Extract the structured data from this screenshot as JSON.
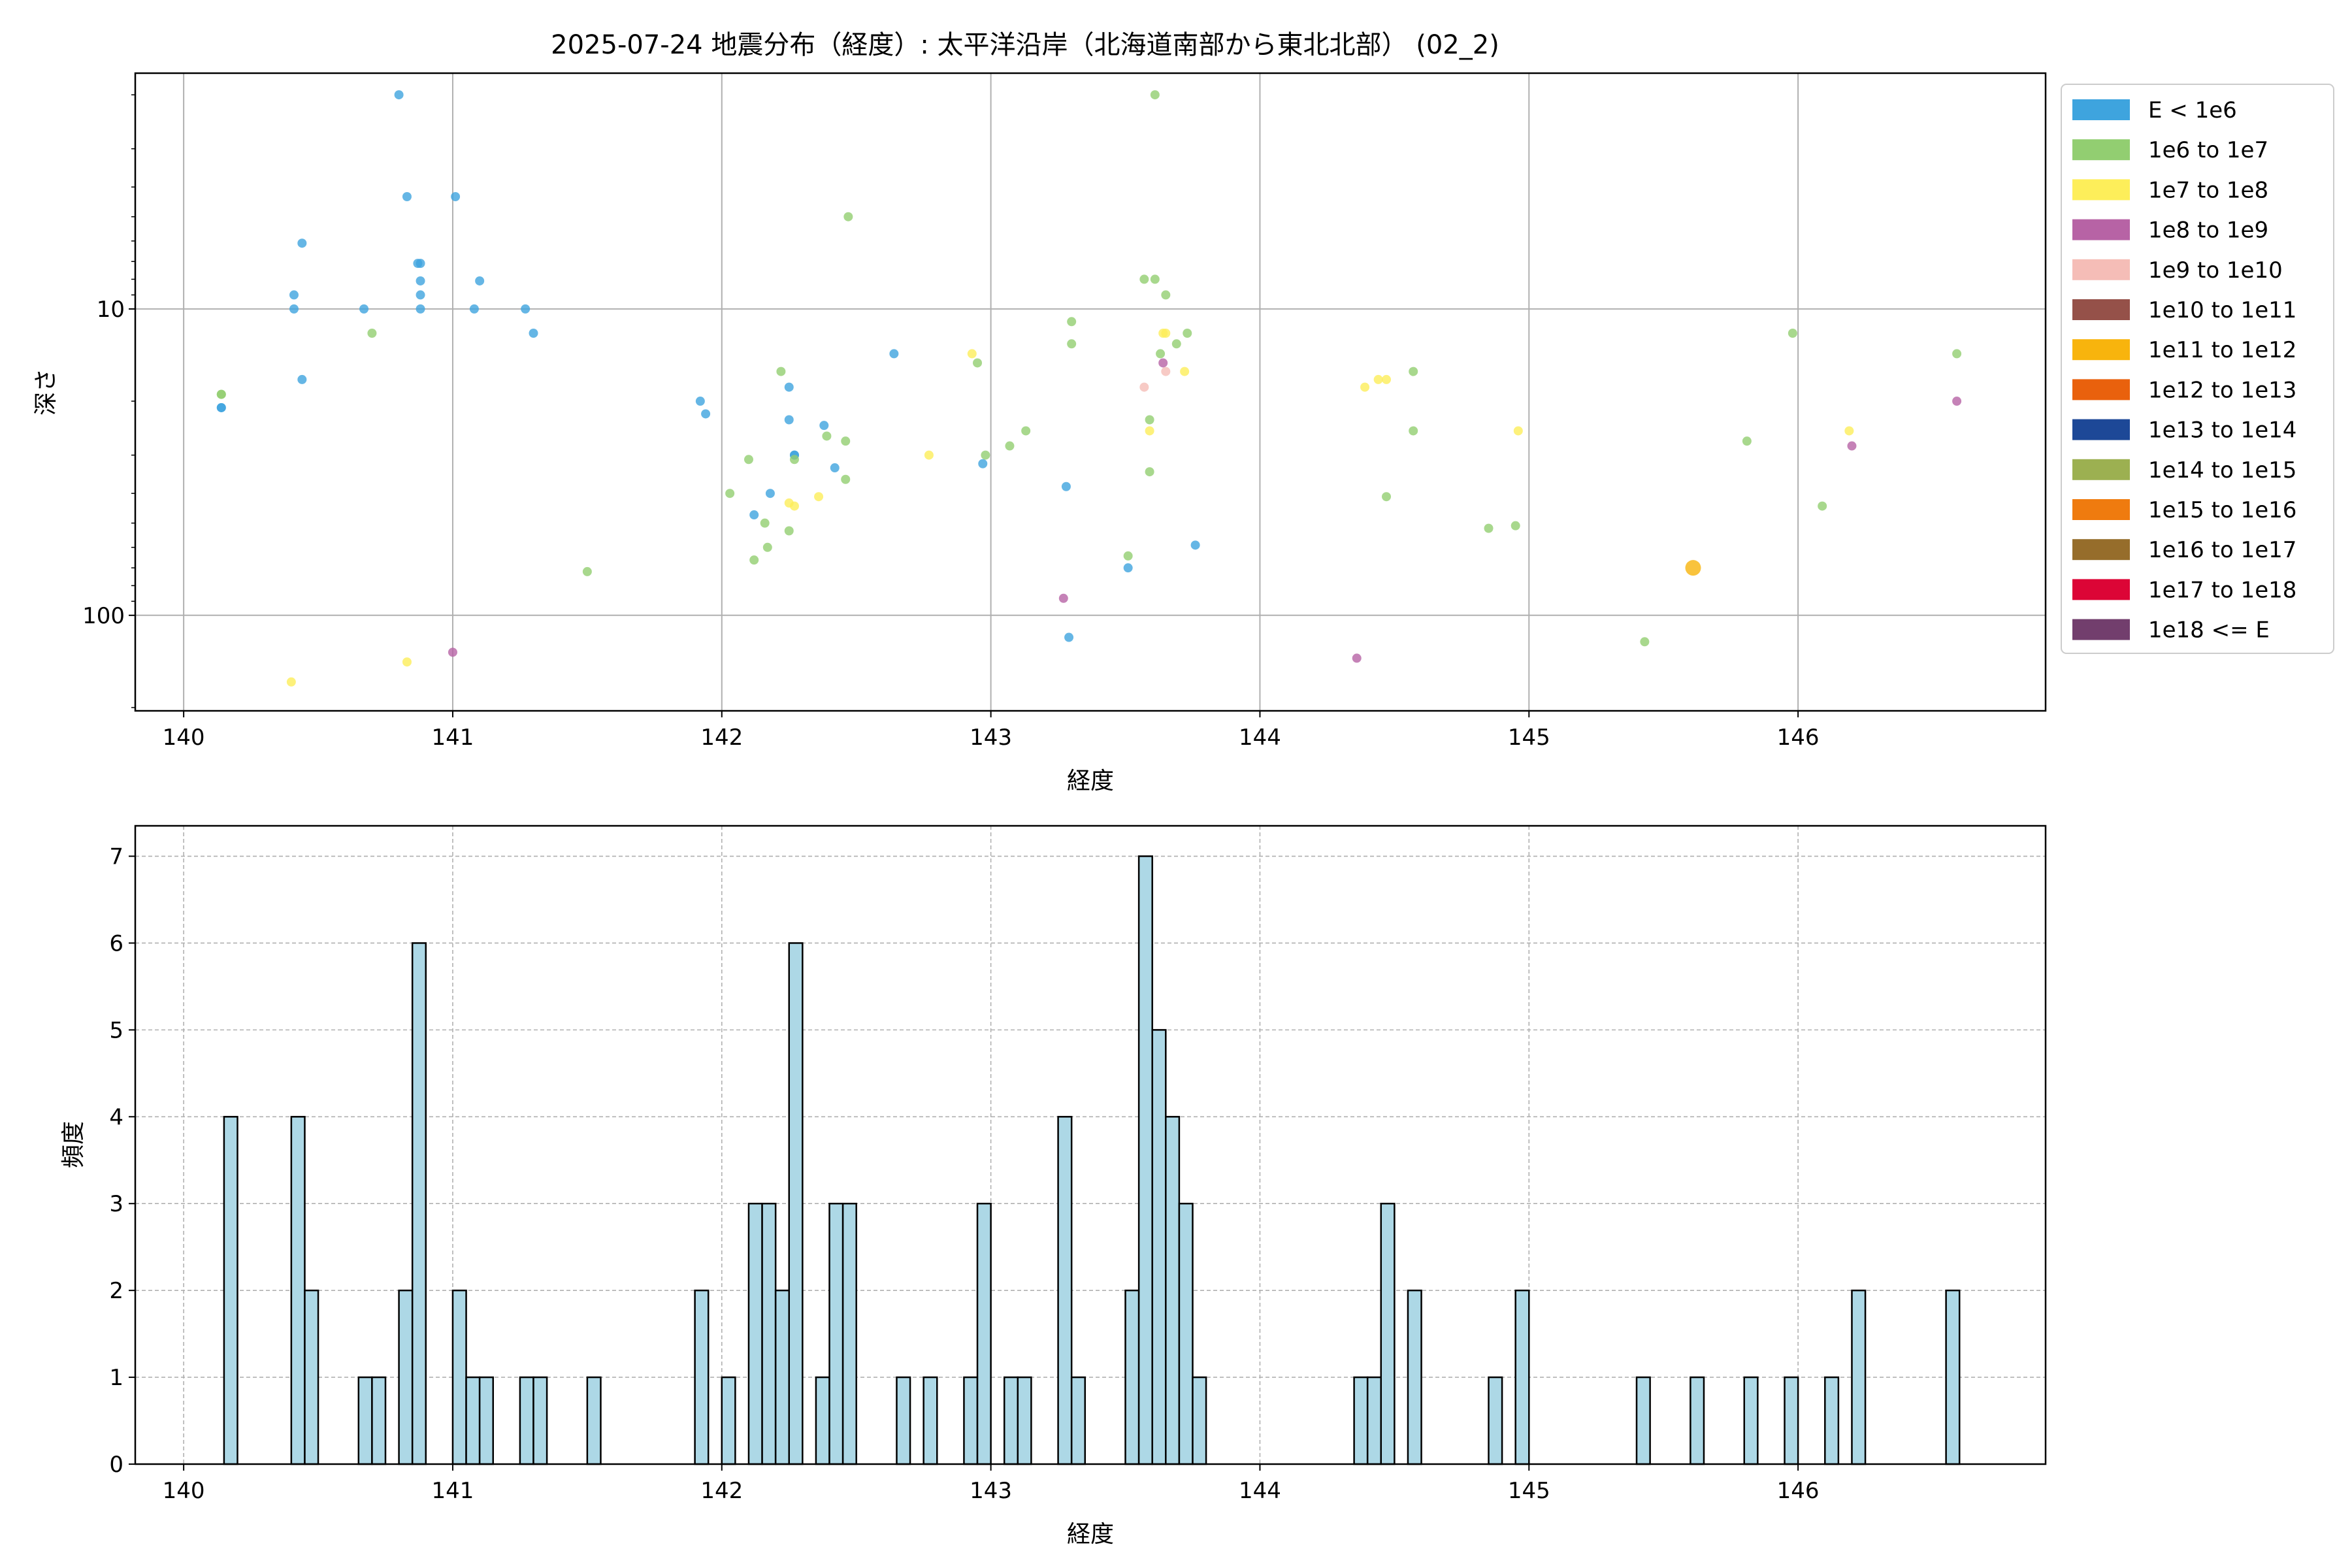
{
  "title": "2025-07-24 地震分布（経度）: 太平洋沿岸（北海道南部から東北北部） (02_2)",
  "chart_data": [
    {
      "type": "scatter",
      "xlabel": "経度",
      "ylabel": "深さ",
      "xlim": [
        139.82,
        146.92
      ],
      "ylim": [
        205,
        1.7
      ],
      "yscale": "log",
      "yaxis_inverted": true,
      "grid": true,
      "xticks": [
        "140",
        "141",
        "142",
        "143",
        "144",
        "145",
        "146"
      ],
      "yticks": [
        "10",
        "100"
      ],
      "legend_position": "outside-right",
      "legend": [
        {
          "label": "E < 1e6",
          "color": "#3ea4de"
        },
        {
          "label": "1e6 to 1e7",
          "color": "#92ce71"
        },
        {
          "label": "1e7 to 1e8",
          "color": "#fdee5a"
        },
        {
          "label": "1e8 to 1e9",
          "color": "#b763a5"
        },
        {
          "label": "1e9 to 1e10",
          "color": "#f5bdb7"
        },
        {
          "label": "1e10 to 1e11",
          "color": "#955149"
        },
        {
          "label": "1e11 to 1e12",
          "color": "#f8b40d"
        },
        {
          "label": "1e12 to 1e13",
          "color": "#e9610d"
        },
        {
          "label": "1e13 to 1e14",
          "color": "#1d4897"
        },
        {
          "label": "1e14 to 1e15",
          "color": "#9cb051"
        },
        {
          "label": "1e15 to 1e16",
          "color": "#ef7b0f"
        },
        {
          "label": "1e16 to 1e17",
          "color": "#966d2b"
        },
        {
          "label": "1e17 to 1e18",
          "color": "#dc0536"
        },
        {
          "label": "1e18 <= E",
          "color": "#723e6d"
        }
      ],
      "points": [
        {
          "x": 140.8,
          "y": 2,
          "c": 0
        },
        {
          "x": 140.83,
          "y": 4.3,
          "c": 0
        },
        {
          "x": 141.01,
          "y": 4.3,
          "c": 0
        },
        {
          "x": 140.44,
          "y": 6.1,
          "c": 0
        },
        {
          "x": 140.87,
          "y": 7.1,
          "c": 0
        },
        {
          "x": 140.88,
          "y": 7.1,
          "c": 0
        },
        {
          "x": 141.1,
          "y": 8.1,
          "c": 0
        },
        {
          "x": 140.88,
          "y": 8.1,
          "c": 0
        },
        {
          "x": 140.41,
          "y": 9,
          "c": 0
        },
        {
          "x": 140.88,
          "y": 9,
          "c": 0
        },
        {
          "x": 140.41,
          "y": 10,
          "c": 0
        },
        {
          "x": 140.67,
          "y": 10,
          "c": 0
        },
        {
          "x": 140.88,
          "y": 10,
          "c": 0
        },
        {
          "x": 141.08,
          "y": 10,
          "c": 0
        },
        {
          "x": 141.27,
          "y": 10,
          "c": 0
        },
        {
          "x": 141.3,
          "y": 12,
          "c": 0
        },
        {
          "x": 140.44,
          "y": 17,
          "c": 0
        },
        {
          "x": 140.14,
          "y": 21,
          "c": 0
        },
        {
          "x": 140.14,
          "y": 21,
          "c": 0
        },
        {
          "x": 141.92,
          "y": 20,
          "c": 0
        },
        {
          "x": 141.94,
          "y": 22,
          "c": 0
        },
        {
          "x": 142.25,
          "y": 18,
          "c": 0
        },
        {
          "x": 142.25,
          "y": 23,
          "c": 0
        },
        {
          "x": 142.38,
          "y": 24,
          "c": 0
        },
        {
          "x": 142.27,
          "y": 30,
          "c": 0
        },
        {
          "x": 142.27,
          "y": 30,
          "c": 0
        },
        {
          "x": 142.42,
          "y": 33,
          "c": 0
        },
        {
          "x": 142.18,
          "y": 40,
          "c": 0
        },
        {
          "x": 142.12,
          "y": 47,
          "c": 0
        },
        {
          "x": 142.64,
          "y": 14,
          "c": 0
        },
        {
          "x": 142.97,
          "y": 32,
          "c": 0
        },
        {
          "x": 143.28,
          "y": 38,
          "c": 0
        },
        {
          "x": 143.29,
          "y": 118,
          "c": 0
        },
        {
          "x": 143.51,
          "y": 70,
          "c": 0
        },
        {
          "x": 143.76,
          "y": 59,
          "c": 0
        },
        {
          "x": 140.14,
          "y": 19,
          "c": 1
        },
        {
          "x": 140.14,
          "y": 19,
          "c": 1
        },
        {
          "x": 140.7,
          "y": 12,
          "c": 1
        },
        {
          "x": 141.5,
          "y": 72,
          "c": 1
        },
        {
          "x": 142.03,
          "y": 40,
          "c": 1
        },
        {
          "x": 142.1,
          "y": 31,
          "c": 1
        },
        {
          "x": 142.12,
          "y": 66,
          "c": 1
        },
        {
          "x": 142.16,
          "y": 50,
          "c": 1
        },
        {
          "x": 142.17,
          "y": 60,
          "c": 1
        },
        {
          "x": 142.22,
          "y": 16,
          "c": 1
        },
        {
          "x": 142.25,
          "y": 53,
          "c": 1
        },
        {
          "x": 142.27,
          "y": 31,
          "c": 1
        },
        {
          "x": 142.39,
          "y": 26,
          "c": 1
        },
        {
          "x": 142.46,
          "y": 27,
          "c": 1
        },
        {
          "x": 142.46,
          "y": 36,
          "c": 1
        },
        {
          "x": 142.47,
          "y": 5,
          "c": 1
        },
        {
          "x": 142.95,
          "y": 15,
          "c": 1
        },
        {
          "x": 142.98,
          "y": 30,
          "c": 1
        },
        {
          "x": 143.07,
          "y": 28,
          "c": 1
        },
        {
          "x": 143.13,
          "y": 25,
          "c": 1
        },
        {
          "x": 143.3,
          "y": 11,
          "c": 1
        },
        {
          "x": 143.3,
          "y": 13,
          "c": 1
        },
        {
          "x": 143.51,
          "y": 64,
          "c": 1
        },
        {
          "x": 143.57,
          "y": 8,
          "c": 1
        },
        {
          "x": 143.59,
          "y": 23,
          "c": 1
        },
        {
          "x": 143.59,
          "y": 34,
          "c": 1
        },
        {
          "x": 143.61,
          "y": 2,
          "c": 1
        },
        {
          "x": 143.61,
          "y": 8,
          "c": 1
        },
        {
          "x": 143.63,
          "y": 14,
          "c": 1
        },
        {
          "x": 143.65,
          "y": 9,
          "c": 1
        },
        {
          "x": 143.69,
          "y": 13,
          "c": 1
        },
        {
          "x": 143.73,
          "y": 12,
          "c": 1
        },
        {
          "x": 144.47,
          "y": 41,
          "c": 1
        },
        {
          "x": 144.57,
          "y": 16,
          "c": 1
        },
        {
          "x": 144.57,
          "y": 25,
          "c": 1
        },
        {
          "x": 144.85,
          "y": 52,
          "c": 1
        },
        {
          "x": 144.95,
          "y": 51,
          "c": 1
        },
        {
          "x": 145.43,
          "y": 122,
          "c": 1
        },
        {
          "x": 145.81,
          "y": 27,
          "c": 1
        },
        {
          "x": 145.98,
          "y": 12,
          "c": 1
        },
        {
          "x": 146.09,
          "y": 44,
          "c": 1
        },
        {
          "x": 146.59,
          "y": 14,
          "c": 1
        },
        {
          "x": 140.4,
          "y": 165,
          "c": 2
        },
        {
          "x": 140.83,
          "y": 142,
          "c": 2
        },
        {
          "x": 142.25,
          "y": 43,
          "c": 2
        },
        {
          "x": 142.27,
          "y": 44,
          "c": 2
        },
        {
          "x": 142.36,
          "y": 41,
          "c": 2
        },
        {
          "x": 142.77,
          "y": 30,
          "c": 2
        },
        {
          "x": 142.93,
          "y": 14,
          "c": 2
        },
        {
          "x": 143.59,
          "y": 25,
          "c": 2
        },
        {
          "x": 143.64,
          "y": 12,
          "c": 2
        },
        {
          "x": 143.65,
          "y": 12,
          "c": 2
        },
        {
          "x": 143.72,
          "y": 16,
          "c": 2
        },
        {
          "x": 144.39,
          "y": 18,
          "c": 2
        },
        {
          "x": 144.44,
          "y": 17,
          "c": 2
        },
        {
          "x": 144.47,
          "y": 17,
          "c": 2
        },
        {
          "x": 144.96,
          "y": 25,
          "c": 2
        },
        {
          "x": 146.19,
          "y": 25,
          "c": 2
        },
        {
          "x": 141.0,
          "y": 132,
          "c": 3
        },
        {
          "x": 143.27,
          "y": 88,
          "c": 3
        },
        {
          "x": 143.64,
          "y": 15,
          "c": 3
        },
        {
          "x": 144.36,
          "y": 138,
          "c": 3
        },
        {
          "x": 146.2,
          "y": 28,
          "c": 3
        },
        {
          "x": 146.59,
          "y": 20,
          "c": 3
        },
        {
          "x": 143.57,
          "y": 18,
          "c": 4
        },
        {
          "x": 143.65,
          "y": 16,
          "c": 4
        },
        {
          "x": 145.61,
          "y": 70,
          "c": 6,
          "big": true
        }
      ]
    },
    {
      "type": "bar",
      "xlabel": "経度",
      "ylabel": "頻度",
      "xlim": [
        139.82,
        146.92
      ],
      "ylim": [
        0,
        7.35
      ],
      "bin_width": 0.05,
      "grid": true,
      "xticks": [
        "140",
        "141",
        "142",
        "143",
        "144",
        "145",
        "146"
      ],
      "yticks": [
        "0",
        "1",
        "2",
        "3",
        "4",
        "5",
        "6",
        "7"
      ],
      "color": "#add8e6",
      "edgecolor": "#000000",
      "bins": [
        {
          "x": 140.15,
          "v": 4
        },
        {
          "x": 140.4,
          "v": 4
        },
        {
          "x": 140.45,
          "v": 2
        },
        {
          "x": 140.65,
          "v": 1
        },
        {
          "x": 140.7,
          "v": 1
        },
        {
          "x": 140.8,
          "v": 2
        },
        {
          "x": 140.85,
          "v": 6
        },
        {
          "x": 141.0,
          "v": 2
        },
        {
          "x": 141.05,
          "v": 1
        },
        {
          "x": 141.1,
          "v": 1
        },
        {
          "x": 141.25,
          "v": 1
        },
        {
          "x": 141.3,
          "v": 1
        },
        {
          "x": 141.5,
          "v": 1
        },
        {
          "x": 141.9,
          "v": 2
        },
        {
          "x": 142.0,
          "v": 1
        },
        {
          "x": 142.1,
          "v": 3
        },
        {
          "x": 142.15,
          "v": 3
        },
        {
          "x": 142.2,
          "v": 2
        },
        {
          "x": 142.25,
          "v": 6
        },
        {
          "x": 142.35,
          "v": 1
        },
        {
          "x": 142.4,
          "v": 3
        },
        {
          "x": 142.45,
          "v": 3
        },
        {
          "x": 142.65,
          "v": 1
        },
        {
          "x": 142.75,
          "v": 1
        },
        {
          "x": 142.9,
          "v": 1
        },
        {
          "x": 142.95,
          "v": 3
        },
        {
          "x": 143.05,
          "v": 1
        },
        {
          "x": 143.1,
          "v": 1
        },
        {
          "x": 143.25,
          "v": 4
        },
        {
          "x": 143.3,
          "v": 1
        },
        {
          "x": 143.5,
          "v": 2
        },
        {
          "x": 143.55,
          "v": 7
        },
        {
          "x": 143.6,
          "v": 5
        },
        {
          "x": 143.65,
          "v": 4
        },
        {
          "x": 143.7,
          "v": 3
        },
        {
          "x": 143.75,
          "v": 1
        },
        {
          "x": 144.35,
          "v": 1
        },
        {
          "x": 144.4,
          "v": 1
        },
        {
          "x": 144.45,
          "v": 3
        },
        {
          "x": 144.55,
          "v": 2
        },
        {
          "x": 144.85,
          "v": 1
        },
        {
          "x": 144.95,
          "v": 2
        },
        {
          "x": 145.4,
          "v": 1
        },
        {
          "x": 145.6,
          "v": 1
        },
        {
          "x": 145.8,
          "v": 1
        },
        {
          "x": 145.95,
          "v": 1
        },
        {
          "x": 146.1,
          "v": 1
        },
        {
          "x": 146.2,
          "v": 2
        },
        {
          "x": 146.55,
          "v": 2
        }
      ]
    }
  ]
}
